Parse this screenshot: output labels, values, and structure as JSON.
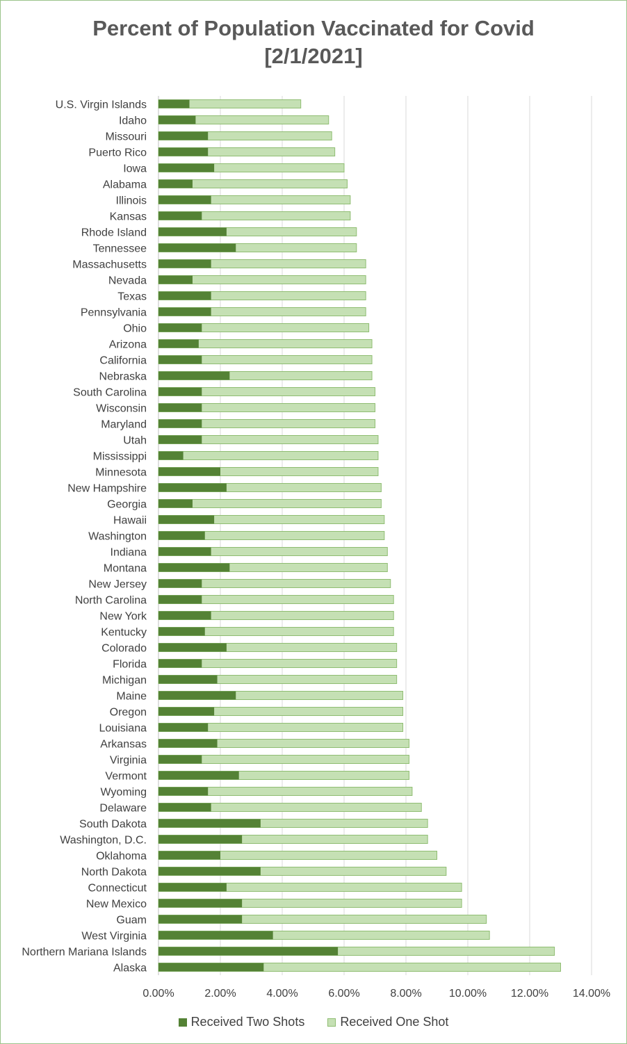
{
  "chart_data": {
    "type": "bar",
    "orientation": "horizontal",
    "stacked": false,
    "title": "Percent of Population Vaccinated for Covid",
    "subtitle": "[2/1/2021]",
    "xlim": [
      0,
      0.14
    ],
    "xticks": [
      "0.00%",
      "2.00%",
      "4.00%",
      "6.00%",
      "8.00%",
      "10.00%",
      "12.00%",
      "14.00%"
    ],
    "grid": true,
    "legend_position": "bottom",
    "categories": [
      "U.S. Virgin Islands",
      "Idaho",
      "Missouri",
      "Puerto Rico",
      "Iowa",
      "Alabama",
      "Illinois",
      "Kansas",
      "Rhode Island",
      "Tennessee",
      "Massachusetts",
      "Nevada",
      "Texas",
      "Pennsylvania",
      "Ohio",
      "Arizona",
      "California",
      "Nebraska",
      "South Carolina",
      "Wisconsin",
      "Maryland",
      "Utah",
      "Mississippi",
      "Minnesota",
      "New Hampshire",
      "Georgia",
      "Hawaii",
      "Washington",
      "Indiana",
      "Montana",
      "New Jersey",
      "North Carolina",
      "New York",
      "Kentucky",
      "Colorado",
      "Florida",
      "Michigan",
      "Maine",
      "Oregon",
      "Louisiana",
      "Arkansas",
      "Virginia",
      "Vermont",
      "Wyoming",
      "Delaware",
      "South Dakota",
      "Washington, D.C.",
      "Oklahoma",
      "North Dakota",
      "Connecticut",
      "New Mexico",
      "Guam",
      "West Virginia",
      "Northern Mariana Islands",
      "Alaska"
    ],
    "series": [
      {
        "name": "Received Two Shots",
        "color": "#548235",
        "values": [
          0.01,
          0.012,
          0.016,
          0.016,
          0.018,
          0.011,
          0.017,
          0.014,
          0.022,
          0.025,
          0.017,
          0.011,
          0.017,
          0.017,
          0.014,
          0.013,
          0.014,
          0.023,
          0.014,
          0.014,
          0.014,
          0.014,
          0.008,
          0.02,
          0.022,
          0.011,
          0.018,
          0.015,
          0.017,
          0.023,
          0.014,
          0.014,
          0.017,
          0.015,
          0.022,
          0.014,
          0.019,
          0.025,
          0.018,
          0.016,
          0.019,
          0.014,
          0.026,
          0.016,
          0.017,
          0.033,
          0.027,
          0.02,
          0.033,
          0.022,
          0.027,
          0.027,
          0.037,
          0.058,
          0.034
        ]
      },
      {
        "name": "Received One Shot",
        "color": "#c5e0b4",
        "values": [
          0.046,
          0.055,
          0.056,
          0.057,
          0.06,
          0.061,
          0.062,
          0.062,
          0.064,
          0.064,
          0.067,
          0.067,
          0.067,
          0.067,
          0.068,
          0.069,
          0.069,
          0.069,
          0.07,
          0.07,
          0.07,
          0.071,
          0.071,
          0.071,
          0.072,
          0.072,
          0.073,
          0.073,
          0.074,
          0.074,
          0.075,
          0.076,
          0.076,
          0.076,
          0.077,
          0.077,
          0.077,
          0.079,
          0.079,
          0.079,
          0.081,
          0.081,
          0.081,
          0.082,
          0.085,
          0.087,
          0.087,
          0.09,
          0.093,
          0.098,
          0.098,
          0.106,
          0.107,
          0.128,
          0.13
        ]
      }
    ]
  }
}
